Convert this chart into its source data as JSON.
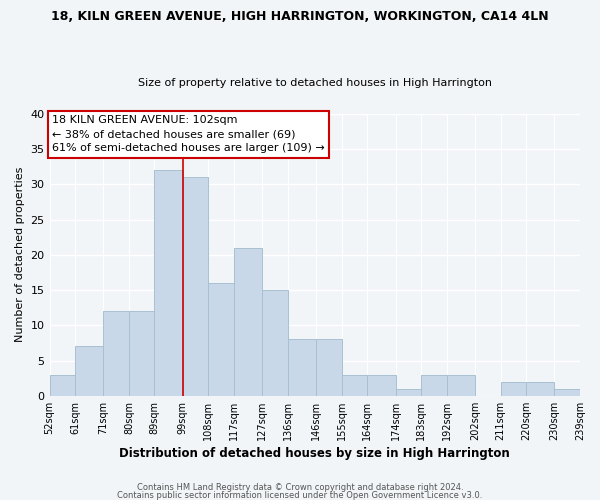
{
  "title1": "18, KILN GREEN AVENUE, HIGH HARRINGTON, WORKINGTON, CA14 4LN",
  "title2": "Size of property relative to detached houses in High Harrington",
  "xlabel": "Distribution of detached houses by size in High Harrington",
  "ylabel": "Number of detached properties",
  "bar_color": "#c8d8e8",
  "bar_edge_color": "#a8c0d0",
  "bins": [
    52,
    61,
    71,
    80,
    89,
    99,
    108,
    117,
    127,
    136,
    146,
    155,
    164,
    174,
    183,
    192,
    202,
    211,
    220,
    230,
    239
  ],
  "counts": [
    3,
    7,
    12,
    12,
    32,
    31,
    16,
    21,
    15,
    8,
    8,
    3,
    3,
    1,
    3,
    3,
    0,
    2,
    2,
    1
  ],
  "tick_labels": [
    "52sqm",
    "61sqm",
    "71sqm",
    "80sqm",
    "89sqm",
    "99sqm",
    "108sqm",
    "117sqm",
    "127sqm",
    "136sqm",
    "146sqm",
    "155sqm",
    "164sqm",
    "174sqm",
    "183sqm",
    "192sqm",
    "202sqm",
    "211sqm",
    "220sqm",
    "230sqm",
    "239sqm"
  ],
  "property_line_x": 99,
  "ann_line1": "18 KILN GREEN AVENUE: 102sqm",
  "ann_line2": "← 38% of detached houses are smaller (69)",
  "ann_line3": "61% of semi-detached houses are larger (109) →",
  "footer1": "Contains HM Land Registry data © Crown copyright and database right 2024.",
  "footer2": "Contains public sector information licensed under the Open Government Licence v3.0.",
  "ylim": [
    0,
    40
  ],
  "background_color": "#f2f5f8",
  "grid_color": "#ffffff",
  "yticks": [
    0,
    5,
    10,
    15,
    20,
    25,
    30,
    35,
    40
  ]
}
